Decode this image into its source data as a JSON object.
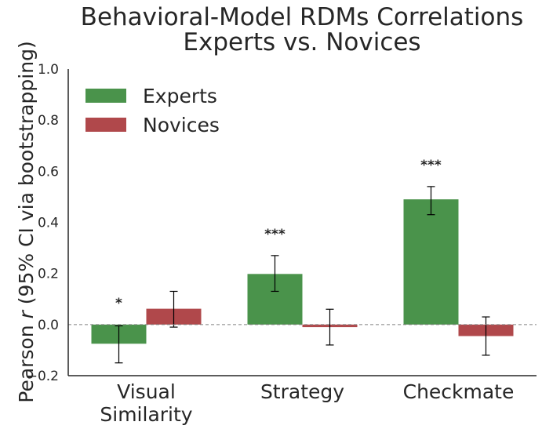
{
  "chart_data": {
    "type": "bar",
    "title_lines": [
      "Behavioral-Model RDMs Correlations",
      "Experts vs. Novices"
    ],
    "ylabel_prefix": "Pearson ",
    "ylabel_var": "r",
    "ylabel_suffix": " (95% CI via bootstrapping)",
    "ylim": [
      -0.2,
      1.0
    ],
    "yticks": [
      "−0.2",
      "0.0",
      "0.2",
      "0.4",
      "0.6",
      "0.8",
      "1.0"
    ],
    "ytick_values": [
      -0.2,
      0.0,
      0.2,
      0.4,
      0.6,
      0.8,
      1.0
    ],
    "categories": [
      [
        "Visual",
        "Similarity"
      ],
      [
        "Strategy"
      ],
      [
        "Checkmate"
      ]
    ],
    "series": [
      {
        "name": "Experts",
        "color": "#4a934b",
        "values": [
          -0.075,
          0.198,
          0.49
        ],
        "ci_low": [
          -0.15,
          0.13,
          0.43
        ],
        "ci_high": [
          -0.005,
          0.27,
          0.54
        ],
        "significance": [
          "*",
          "***",
          "***"
        ]
      },
      {
        "name": "Novices",
        "color": "#b0484b",
        "values": [
          0.062,
          -0.01,
          -0.045
        ],
        "ci_low": [
          -0.01,
          -0.08,
          -0.12
        ],
        "ci_high": [
          0.13,
          0.06,
          0.03
        ],
        "significance": [
          "",
          "",
          ""
        ]
      }
    ],
    "reference_line": 0.0,
    "grid": false,
    "legend_position": "top-left"
  }
}
